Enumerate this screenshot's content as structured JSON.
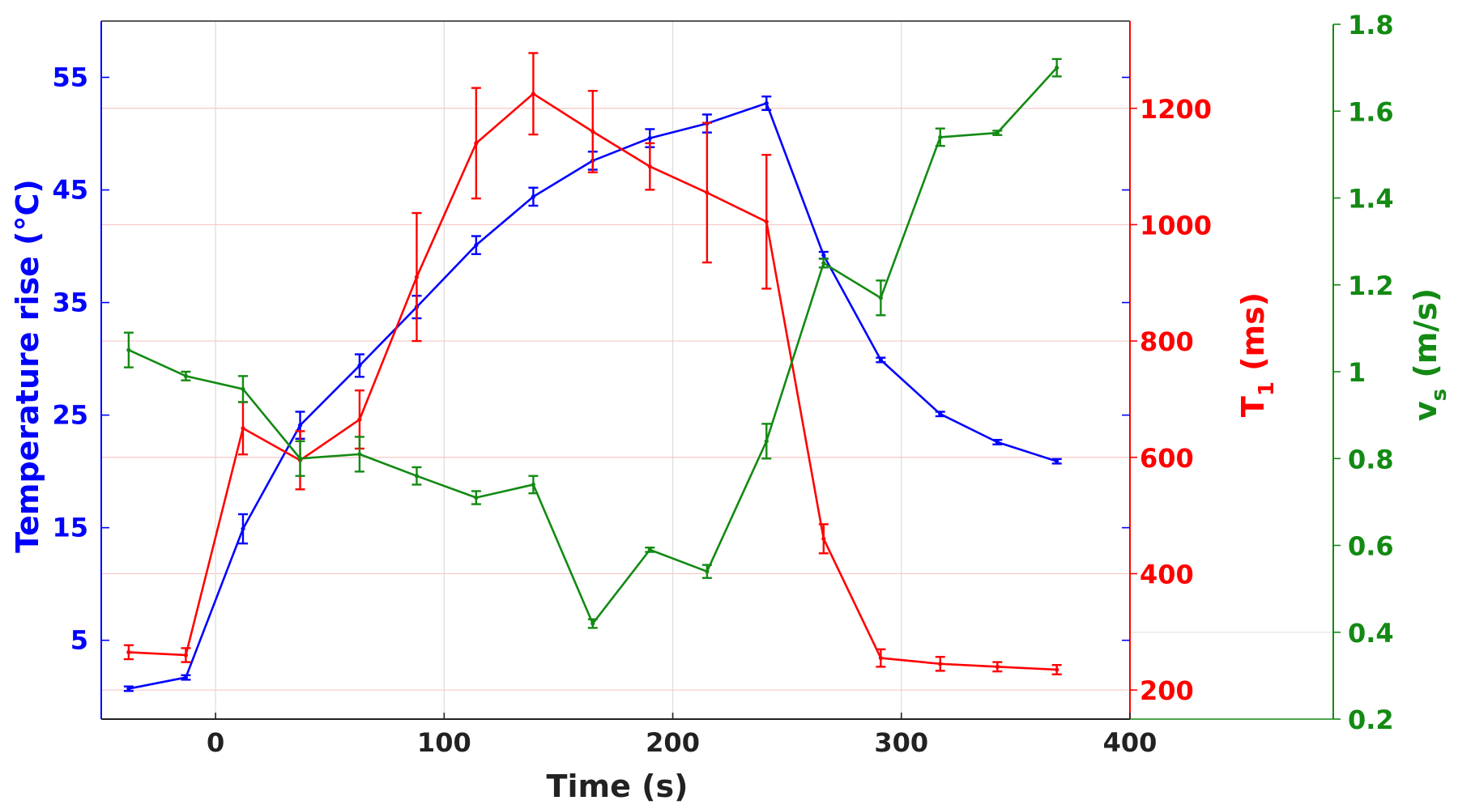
{
  "chart_data": {
    "type": "line",
    "xlabel": "Time (s)",
    "xlim": [
      -50,
      400
    ],
    "xticks": [
      0,
      100,
      200,
      300,
      400
    ],
    "axes": {
      "left": {
        "label": "Temperature rise (°C)",
        "color": "#0000ff",
        "ylim": [
          -2,
          60
        ],
        "ticks": [
          5,
          15,
          25,
          35,
          45,
          55
        ]
      },
      "right1": {
        "label_main": "T",
        "label_sub": "1",
        "label_rest": " (ms)",
        "color": "#ff0000",
        "ylim": [
          150,
          1350
        ],
        "ticks": [
          200,
          400,
          600,
          800,
          1000,
          1200
        ]
      },
      "right2": {
        "label_main": "v",
        "label_sub": "s",
        "label_rest": " (m/s)",
        "color": "#138a13",
        "ylim": [
          0.2,
          1.8
        ],
        "ticks": [
          "0.2",
          "0.4",
          "0.6",
          "0.8",
          "1",
          "1.2",
          "1.4",
          "1.6",
          "1.8"
        ]
      }
    },
    "series": [
      {
        "axis": "left",
        "color": "#0000ff",
        "x": [
          -38,
          -13,
          12,
          37,
          63,
          88,
          114,
          139,
          165,
          190,
          215,
          241,
          266,
          291,
          317,
          342,
          368
        ],
        "y": [
          0.7,
          1.7,
          14.9,
          24.1,
          29.4,
          34.6,
          40.1,
          44.4,
          47.6,
          49.6,
          50.9,
          52.7,
          39.2,
          29.9,
          25.1,
          22.6,
          20.9
        ],
        "err": [
          0.2,
          0.2,
          1.3,
          1.2,
          1.0,
          1.0,
          0.8,
          0.8,
          0.8,
          0.8,
          0.8,
          0.6,
          0.3,
          0.2,
          0.2,
          0.2,
          0.2
        ]
      },
      {
        "axis": "right1",
        "color": "#ff0000",
        "x": [
          -38,
          -13,
          12,
          37,
          63,
          88,
          114,
          139,
          165,
          190,
          215,
          241,
          266,
          291,
          317,
          342,
          368
        ],
        "y": [
          265,
          260,
          650,
          595,
          665,
          910,
          1140,
          1225,
          1160,
          1100,
          1055,
          1005,
          460,
          255,
          245,
          240,
          235
        ],
        "err": [
          12,
          12,
          45,
          50,
          50,
          110,
          95,
          70,
          70,
          40,
          120,
          115,
          25,
          15,
          12,
          8,
          8
        ]
      },
      {
        "axis": "right2",
        "color": "#138a13",
        "x": [
          -38,
          -13,
          12,
          37,
          63,
          88,
          114,
          139,
          165,
          190,
          215,
          241,
          266,
          291,
          317,
          342,
          368
        ],
        "y": [
          1.05,
          0.99,
          0.96,
          0.8,
          0.81,
          0.76,
          0.71,
          0.74,
          0.42,
          0.59,
          0.54,
          0.84,
          1.25,
          1.17,
          1.54,
          1.55,
          1.7
        ],
        "err": [
          0.04,
          0.01,
          0.03,
          0.04,
          0.04,
          0.02,
          0.015,
          0.02,
          0.01,
          0.005,
          0.015,
          0.04,
          0.01,
          0.04,
          0.02,
          0.005,
          0.02
        ]
      }
    ]
  }
}
